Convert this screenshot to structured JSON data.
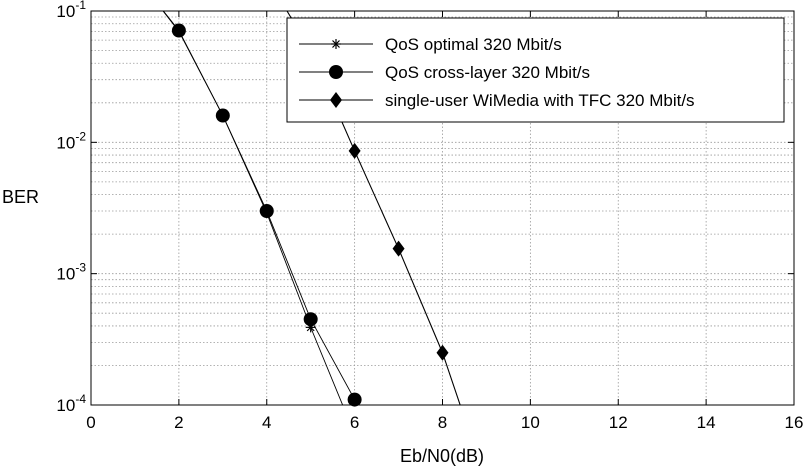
{
  "chart_data": {
    "type": "line",
    "xlabel": "Eb/N0(dB)",
    "ylabel": "BER",
    "xlim": [
      0,
      16
    ],
    "ylim": [
      0.0001,
      0.1
    ],
    "yscale": "log",
    "grid": true,
    "legend_position": "top-right",
    "x_ticks": [
      "0",
      "2",
      "4",
      "6",
      "8",
      "10",
      "12",
      "14",
      "16"
    ],
    "y_ticks": [
      {
        "base": "10",
        "exp": "-1"
      },
      {
        "base": "10",
        "exp": "-2"
      },
      {
        "base": "10",
        "exp": "-3"
      },
      {
        "base": "10",
        "exp": "-4"
      }
    ],
    "series": [
      {
        "name": "QoS optimal 320 Mbit/s",
        "marker": "asterisk",
        "color": "#000000",
        "x": [
          1.3,
          2,
          3,
          4,
          5,
          6
        ],
        "y": [
          0.14,
          0.07,
          0.016,
          0.0029,
          0.00039,
          6e-05
        ],
        "marked_x": [
          2,
          3,
          4,
          5
        ]
      },
      {
        "name": "QoS cross-layer 320 Mbit/s",
        "marker": "circle",
        "color": "#000000",
        "x": [
          1.3,
          2,
          3,
          4,
          5,
          6
        ],
        "y": [
          0.14,
          0.071,
          0.016,
          0.003,
          0.00045,
          0.00011
        ],
        "marked_x": [
          2,
          3,
          4,
          5,
          6
        ]
      },
      {
        "name": "single-user WiMedia with TFC 320 Mbit/s",
        "marker": "diamond",
        "color": "#000000",
        "x": [
          4.2,
          5,
          6,
          7,
          8,
          8.5
        ],
        "y": [
          0.14,
          0.05,
          0.0086,
          0.00155,
          0.00025,
          8e-05
        ],
        "marked_x": [
          6,
          7,
          8
        ]
      }
    ]
  }
}
